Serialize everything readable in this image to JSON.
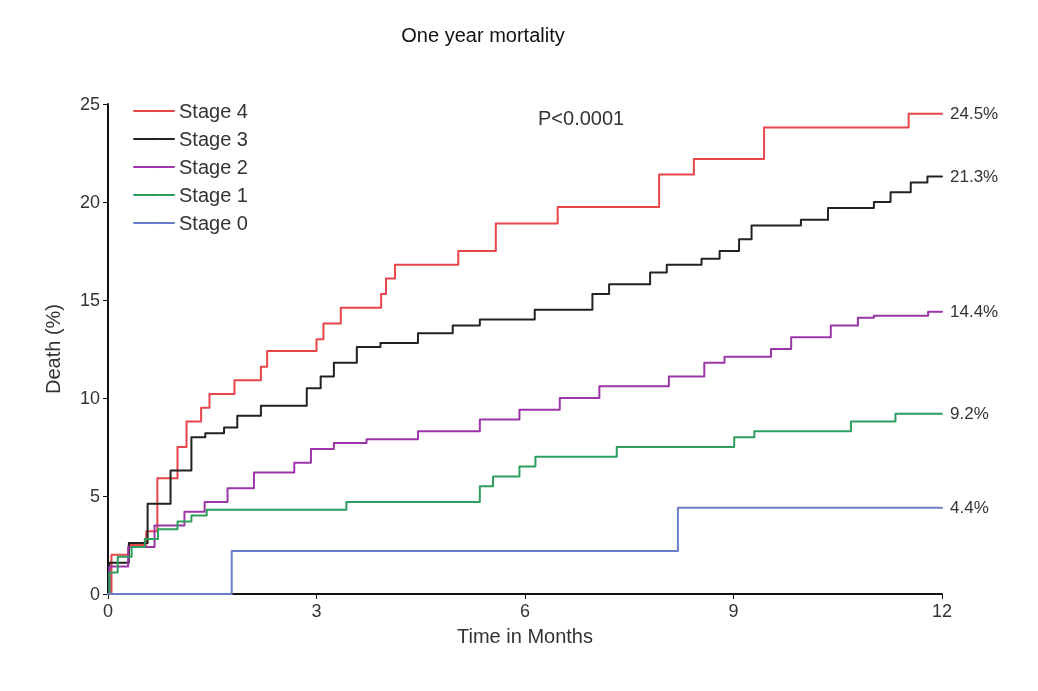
{
  "chart_data": {
    "type": "step",
    "title": "One year mortality",
    "xlabel": "Time in Months",
    "ylabel": "Death (%)",
    "xlim": [
      0,
      12
    ],
    "xticks": [
      0,
      3,
      6,
      9,
      12
    ],
    "ylim": [
      0,
      25
    ],
    "yticks": [
      0,
      5,
      10,
      15,
      20,
      25
    ],
    "grid": false,
    "legend": "top left",
    "marker": "none",
    "line_style": "solid",
    "series": [
      {
        "name": "Stage 4",
        "color": "#e8454b",
        "x": [
          0,
          0.05,
          0.3,
          0.55,
          0.71,
          1.0,
          1.13,
          1.34,
          1.46,
          1.82,
          2.2,
          2.29,
          3.0,
          3.1,
          3.35,
          3.93,
          4.0,
          4.13,
          5.04,
          5.58,
          6.47,
          7.93,
          8.43,
          9.44,
          11.52,
          12
        ],
        "values": [
          0,
          2.0,
          2.5,
          3.2,
          5.9,
          7.5,
          8.8,
          9.5,
          10.2,
          10.9,
          11.6,
          12.4,
          13.0,
          13.8,
          14.6,
          15.3,
          16.1,
          16.8,
          17.5,
          18.9,
          19.75,
          21.4,
          22.2,
          23.8,
          24.5,
          24.5
        ],
        "value_labels": [
          null,
          null,
          null,
          null,
          null,
          null,
          null,
          null,
          null,
          null,
          null,
          null,
          null,
          null,
          null,
          null,
          null,
          null,
          null,
          null,
          null,
          null,
          null,
          null,
          null,
          "24.5%"
        ]
      },
      {
        "name": "Stage 3",
        "color": "#222222",
        "x": [
          0,
          0.02,
          0.3,
          0.57,
          0.9,
          1.2,
          1.4,
          1.67,
          1.86,
          2.2,
          2.86,
          3.06,
          3.25,
          3.58,
          3.92,
          4.46,
          4.96,
          5.35,
          6.14,
          6.97,
          7.21,
          7.8,
          8.04,
          8.54,
          8.8,
          9.08,
          9.26,
          9.97,
          10.36,
          11.02,
          11.26,
          11.55,
          11.79,
          12
        ],
        "values": [
          0,
          1.6,
          2.6,
          4.6,
          6.3,
          8.0,
          8.2,
          8.5,
          9.1,
          9.6,
          10.5,
          11.1,
          11.8,
          12.6,
          12.8,
          13.3,
          13.7,
          14.0,
          14.5,
          15.3,
          15.8,
          16.4,
          16.8,
          17.1,
          17.5,
          18.1,
          18.8,
          19.1,
          19.7,
          20.0,
          20.5,
          21.0,
          21.3,
          21.3
        ],
        "value_labels": [
          null,
          null,
          null,
          null,
          null,
          null,
          null,
          null,
          null,
          null,
          null,
          null,
          null,
          null,
          null,
          null,
          null,
          null,
          null,
          null,
          null,
          null,
          null,
          null,
          null,
          null,
          null,
          null,
          null,
          null,
          null,
          null,
          null,
          "21.3%"
        ]
      },
      {
        "name": "Stage 2",
        "color": "#9b35a8",
        "x": [
          0,
          0.02,
          0.29,
          0.67,
          1.1,
          1.39,
          1.72,
          2.1,
          2.68,
          2.92,
          3.25,
          3.72,
          4.46,
          5.35,
          5.92,
          6.5,
          7.07,
          8.07,
          8.58,
          8.87,
          9.54,
          9.83,
          10.4,
          10.79,
          11.02,
          11.8,
          12
        ],
        "values": [
          0,
          1.4,
          2.4,
          3.5,
          4.2,
          4.7,
          5.4,
          6.2,
          6.7,
          7.4,
          7.7,
          7.9,
          8.3,
          8.9,
          9.4,
          10.0,
          10.6,
          11.1,
          11.8,
          12.1,
          12.5,
          13.1,
          13.7,
          14.1,
          14.2,
          14.4,
          14.4
        ],
        "value_labels": [
          null,
          null,
          null,
          null,
          null,
          null,
          null,
          null,
          null,
          null,
          null,
          null,
          null,
          null,
          null,
          null,
          null,
          null,
          null,
          null,
          null,
          null,
          null,
          null,
          null,
          null,
          "14.4%"
        ]
      },
      {
        "name": "Stage 1",
        "color": "#2e9e5e",
        "x": [
          0,
          0.02,
          0.14,
          0.34,
          0.53,
          0.72,
          1.0,
          1.2,
          1.42,
          3.43,
          5.35,
          5.54,
          5.92,
          6.15,
          7.32,
          9.01,
          9.3,
          10.69,
          11.33,
          12
        ],
        "values": [
          0,
          1.1,
          1.9,
          2.4,
          2.8,
          3.3,
          3.7,
          4.0,
          4.3,
          4.7,
          5.5,
          6.0,
          6.5,
          7.0,
          7.5,
          8.0,
          8.3,
          8.8,
          9.2,
          9.2
        ],
        "value_labels": [
          null,
          null,
          null,
          null,
          null,
          null,
          null,
          null,
          null,
          null,
          null,
          null,
          null,
          null,
          null,
          null,
          null,
          null,
          null,
          "9.2%"
        ]
      },
      {
        "name": "Stage 0",
        "color": "#6a7fc8",
        "x": [
          0,
          1.78,
          8.2,
          12
        ],
        "values": [
          0,
          2.2,
          4.4,
          4.4
        ],
        "value_labels": [
          null,
          null,
          null,
          "4.4%"
        ]
      }
    ],
    "annotations": [
      "P<0.0001"
    ]
  }
}
